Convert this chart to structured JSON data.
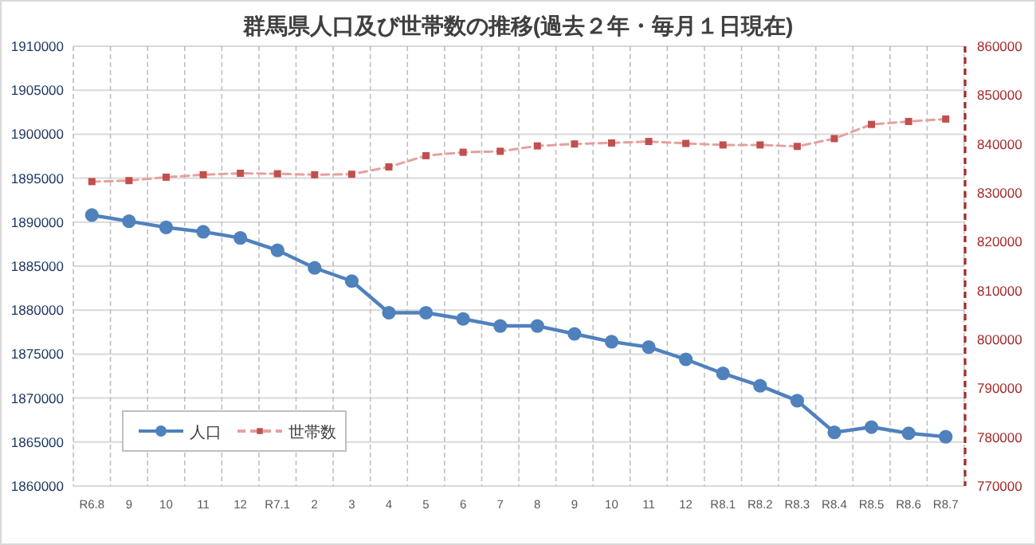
{
  "chart_data": {
    "type": "line",
    "title": "群馬県人口及び世帯数の推移(過去２年・毎月１日現在)",
    "categories": [
      "R6.8",
      "9",
      "10",
      "11",
      "12",
      "R7.1",
      "2",
      "3",
      "4",
      "5",
      "6",
      "7",
      "8",
      "9",
      "10",
      "11",
      "12",
      "R8.1",
      "R8.2",
      "R8.3",
      "R8.4",
      "R8.5",
      "R8.6",
      "R8.7"
    ],
    "series": [
      {
        "name": "人口",
        "color": "#4f81bd",
        "marker": "circle",
        "line_style": "solid",
        "values": [
          1890800,
          1890100,
          1889400,
          1888900,
          1888200,
          1886800,
          1884800,
          1883300,
          1879700,
          1879700,
          1879000,
          1878200,
          1878200,
          1877300,
          1876400,
          1875800,
          1874400,
          1872800,
          1871400,
          1869700,
          1866100,
          1866700,
          1866000,
          1865600
        ]
      },
      {
        "name": "世帯数",
        "color": "#c0504d",
        "marker": "square",
        "line_style": "dashed",
        "axis": "y2",
        "values": [
          832300,
          832500,
          833200,
          833700,
          834000,
          833900,
          833700,
          833800,
          835300,
          837600,
          838300,
          838500,
          839600,
          840000,
          840200,
          840500,
          840100,
          839800,
          839800,
          839500,
          841100,
          844000,
          844600,
          845100
        ]
      }
    ],
    "ylim": [
      1860000,
      1910000
    ],
    "yticks": [
      1860000,
      1865000,
      1870000,
      1875000,
      1880000,
      1885000,
      1890000,
      1895000,
      1900000,
      1905000,
      1910000
    ],
    "y2lim": [
      770000,
      860000
    ],
    "y2ticks": [
      770000,
      780000,
      790000,
      800000,
      810000,
      820000,
      830000,
      840000,
      850000,
      860000
    ],
    "grid": true,
    "legend": "bottom left"
  }
}
